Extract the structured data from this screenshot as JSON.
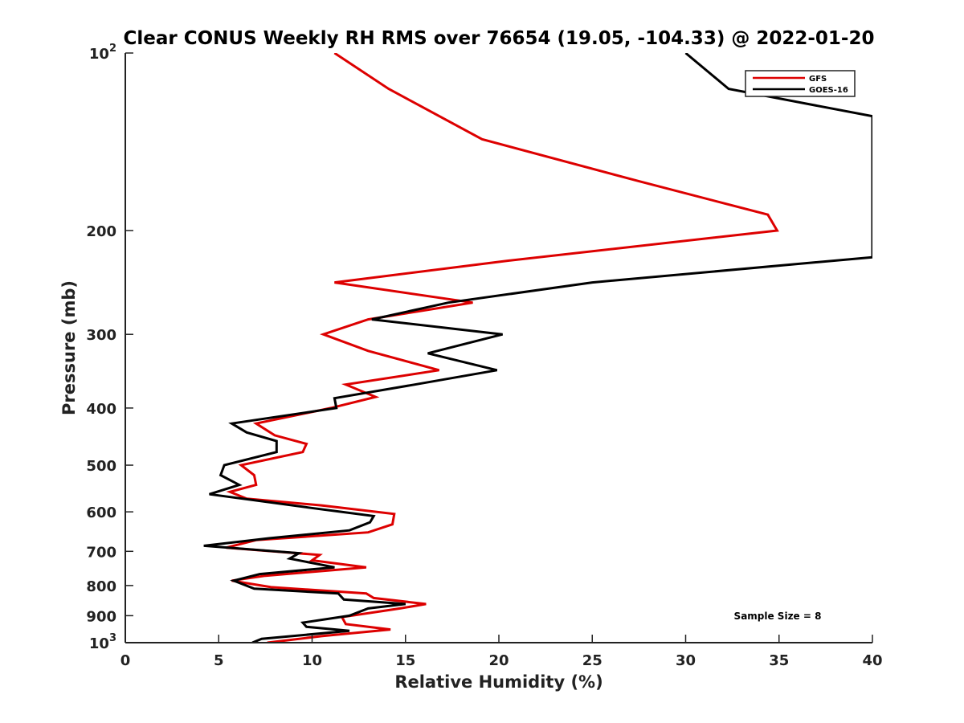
{
  "chart_data": {
    "type": "line",
    "title": "Clear CONUS Weekly RH RMS over 76654 (19.05, -104.33) @ 2022-01-20",
    "xlabel": "Relative Humidity (%)",
    "ylabel": "Pressure (mb)",
    "xlim": [
      0,
      40
    ],
    "ylim": [
      100,
      1000
    ],
    "yscale": "log",
    "y_inverted": true,
    "grid": false,
    "legend_position": "top-right",
    "x_ticks": [
      0,
      5,
      10,
      15,
      20,
      25,
      30,
      35,
      40
    ],
    "x_tick_labels": [
      "0",
      "5",
      "10",
      "15",
      "20",
      "25",
      "30",
      "35",
      "40"
    ],
    "y_ticks": [
      100,
      200,
      300,
      400,
      500,
      600,
      700,
      800,
      900,
      1000
    ],
    "y_tick_labels": [
      {
        "base": "10",
        "exp": "2"
      },
      {
        "base": "200",
        "exp": ""
      },
      {
        "base": "300",
        "exp": ""
      },
      {
        "base": "400",
        "exp": ""
      },
      {
        "base": "500",
        "exp": ""
      },
      {
        "base": "600",
        "exp": ""
      },
      {
        "base": "700",
        "exp": ""
      },
      {
        "base": "800",
        "exp": ""
      },
      {
        "base": "900",
        "exp": ""
      },
      {
        "base": "10",
        "exp": "3"
      }
    ],
    "annotation": "Sample Size = 8",
    "series": [
      {
        "name": "GFS",
        "color": "#dd0000",
        "points": [
          {
            "x": 11.2,
            "p": 100
          },
          {
            "x": 14.1,
            "p": 115
          },
          {
            "x": 19.1,
            "p": 140
          },
          {
            "x": 27.5,
            "p": 165
          },
          {
            "x": 34.4,
            "p": 188
          },
          {
            "x": 34.9,
            "p": 200
          },
          {
            "x": 20.5,
            "p": 225
          },
          {
            "x": 11.2,
            "p": 245
          },
          {
            "x": 18.6,
            "p": 265
          },
          {
            "x": 13.0,
            "p": 283
          },
          {
            "x": 10.6,
            "p": 300
          },
          {
            "x": 13.0,
            "p": 320
          },
          {
            "x": 16.8,
            "p": 345
          },
          {
            "x": 11.8,
            "p": 365
          },
          {
            "x": 13.4,
            "p": 383
          },
          {
            "x": 11.0,
            "p": 400
          },
          {
            "x": 7.0,
            "p": 425
          },
          {
            "x": 8.0,
            "p": 445
          },
          {
            "x": 9.7,
            "p": 460
          },
          {
            "x": 9.5,
            "p": 475
          },
          {
            "x": 6.2,
            "p": 500
          },
          {
            "x": 6.9,
            "p": 520
          },
          {
            "x": 7.0,
            "p": 540
          },
          {
            "x": 5.6,
            "p": 555
          },
          {
            "x": 6.5,
            "p": 570
          },
          {
            "x": 10.5,
            "p": 585
          },
          {
            "x": 14.4,
            "p": 605
          },
          {
            "x": 14.3,
            "p": 630
          },
          {
            "x": 13.0,
            "p": 650
          },
          {
            "x": 7.0,
            "p": 670
          },
          {
            "x": 5.4,
            "p": 690
          },
          {
            "x": 10.4,
            "p": 710
          },
          {
            "x": 10.0,
            "p": 725
          },
          {
            "x": 12.9,
            "p": 745
          },
          {
            "x": 7.5,
            "p": 770
          },
          {
            "x": 5.7,
            "p": 785
          },
          {
            "x": 7.8,
            "p": 805
          },
          {
            "x": 12.9,
            "p": 825
          },
          {
            "x": 13.3,
            "p": 840
          },
          {
            "x": 16.1,
            "p": 860
          },
          {
            "x": 14.7,
            "p": 875
          },
          {
            "x": 11.6,
            "p": 905
          },
          {
            "x": 11.8,
            "p": 930
          },
          {
            "x": 14.2,
            "p": 950
          },
          {
            "x": 10.5,
            "p": 975
          },
          {
            "x": 7.6,
            "p": 1000
          }
        ]
      },
      {
        "name": "GOES-16",
        "color": "#000000",
        "points": [
          {
            "x": 30.0,
            "p": 100
          },
          {
            "x": 32.3,
            "p": 115
          },
          {
            "x": 40.0,
            "p": 128
          },
          {
            "x": 40.0,
            "p": 222
          },
          {
            "x": 25.0,
            "p": 245
          },
          {
            "x": 17.3,
            "p": 265
          },
          {
            "x": 13.2,
            "p": 283
          },
          {
            "x": 20.2,
            "p": 300
          },
          {
            "x": 16.2,
            "p": 323
          },
          {
            "x": 19.9,
            "p": 345
          },
          {
            "x": 15.5,
            "p": 365
          },
          {
            "x": 11.2,
            "p": 385
          },
          {
            "x": 11.3,
            "p": 400
          },
          {
            "x": 5.7,
            "p": 425
          },
          {
            "x": 6.5,
            "p": 440
          },
          {
            "x": 8.1,
            "p": 455
          },
          {
            "x": 8.1,
            "p": 475
          },
          {
            "x": 5.3,
            "p": 500
          },
          {
            "x": 5.1,
            "p": 520
          },
          {
            "x": 6.1,
            "p": 540
          },
          {
            "x": 4.5,
            "p": 560
          },
          {
            "x": 9.8,
            "p": 590
          },
          {
            "x": 13.3,
            "p": 610
          },
          {
            "x": 13.1,
            "p": 625
          },
          {
            "x": 12.0,
            "p": 645
          },
          {
            "x": 7.7,
            "p": 665
          },
          {
            "x": 4.2,
            "p": 685
          },
          {
            "x": 9.3,
            "p": 705
          },
          {
            "x": 8.8,
            "p": 720
          },
          {
            "x": 11.2,
            "p": 745
          },
          {
            "x": 7.2,
            "p": 765
          },
          {
            "x": 5.8,
            "p": 785
          },
          {
            "x": 6.9,
            "p": 810
          },
          {
            "x": 11.4,
            "p": 825
          },
          {
            "x": 11.7,
            "p": 845
          },
          {
            "x": 15.0,
            "p": 860
          },
          {
            "x": 13.0,
            "p": 875
          },
          {
            "x": 12.0,
            "p": 900
          },
          {
            "x": 9.5,
            "p": 925
          },
          {
            "x": 9.7,
            "p": 940
          },
          {
            "x": 12.0,
            "p": 955
          },
          {
            "x": 7.3,
            "p": 985
          },
          {
            "x": 6.8,
            "p": 1000
          }
        ]
      }
    ]
  }
}
